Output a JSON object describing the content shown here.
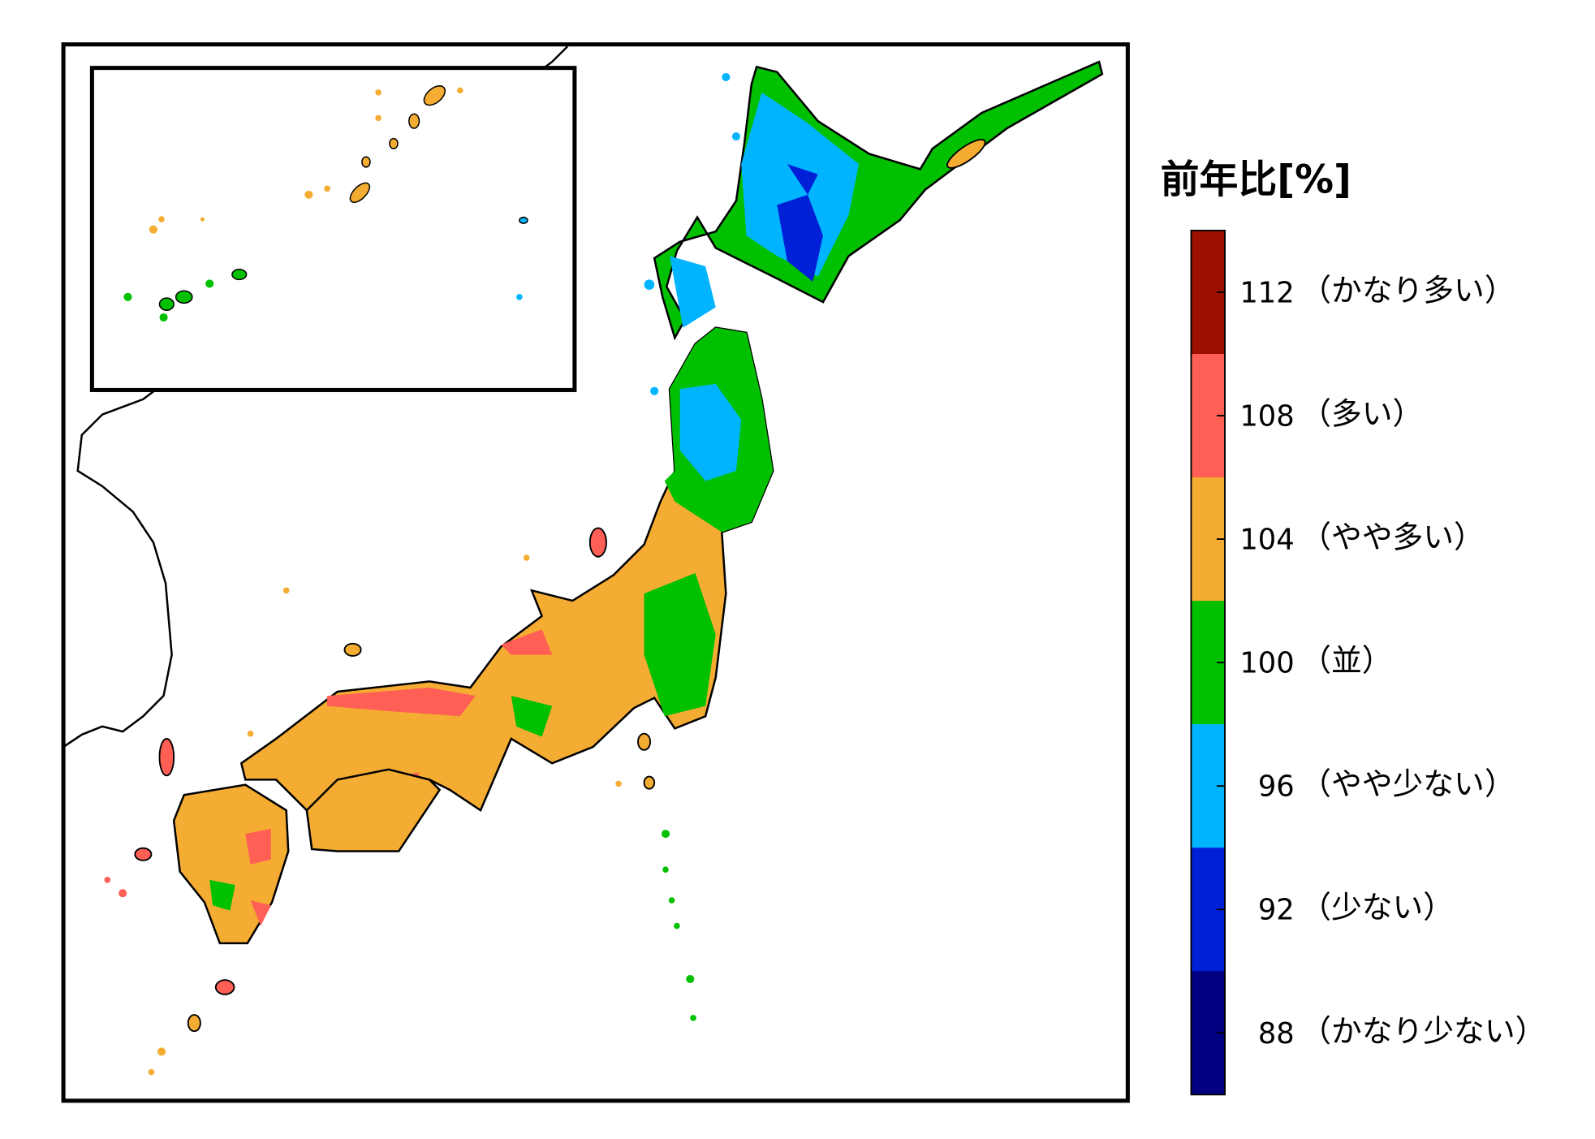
{
  "map": {
    "legend": {
      "title": "前年比[%]",
      "items": [
        {
          "value": 112,
          "label": "（かなり多い）",
          "color": "#9b1000"
        },
        {
          "value": 108,
          "label": "（多い）",
          "color": "#ff5f55"
        },
        {
          "value": 104,
          "label": "（やや多い）",
          "color": "#f5ac32"
        },
        {
          "value": 100,
          "label": "（並）",
          "color": "#00c000"
        },
        {
          "value": 96,
          "label": "（やや少ない）",
          "color": "#00b4ff"
        },
        {
          "value": 92,
          "label": "（少ない）",
          "color": "#0020d8"
        },
        {
          "value": 88,
          "label": "（かなり少ない）",
          "color": "#000080"
        }
      ]
    }
  }
}
